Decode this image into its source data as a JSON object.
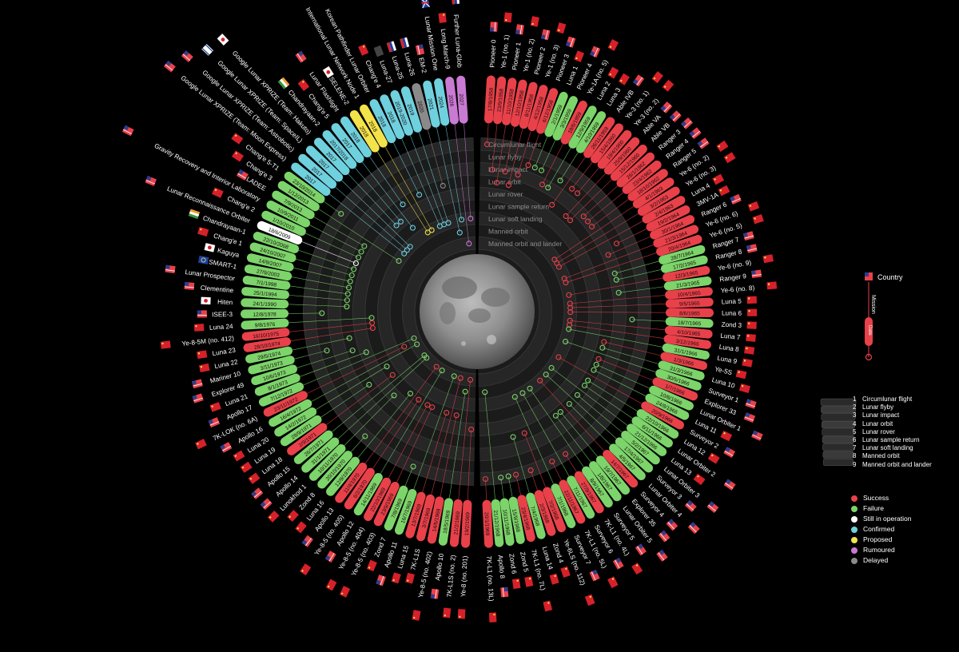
{
  "colors": {
    "success": "#e8414a",
    "failure": "#7cd46a",
    "still_in_operation": "#ffffff",
    "confirmed": "#6fd0de",
    "proposed": "#f3e34a",
    "rumoured": "#c97ad3",
    "delayed": "#8a8a8a"
  },
  "mission_types": [
    "Circumlunar flight",
    "Lunar flyby",
    "Lunar impact",
    "Lunar orbit",
    "Lunar rover",
    "Lunar sample return",
    "Lunar soft landing",
    "Manned orbit",
    "Manned orbit and lander"
  ],
  "legend": {
    "country": "Country",
    "mission": "Mission",
    "date": "Date",
    "status": [
      {
        "key": "success",
        "label": "Success"
      },
      {
        "key": "failure",
        "label": "Failure"
      },
      {
        "key": "still_in_operation",
        "label": "Still in operation"
      },
      {
        "key": "confirmed",
        "label": "Confirmed"
      },
      {
        "key": "proposed",
        "label": "Proposed"
      },
      {
        "key": "rumoured",
        "label": "Rumoured"
      },
      {
        "key": "delayed",
        "label": "Delayed"
      }
    ]
  },
  "missions_right": [
    {
      "name": "Pioneer 0",
      "date": "17/8/1958",
      "status": "success",
      "type": 1,
      "flag": "us"
    },
    {
      "name": "Ye-1 (no. 1)",
      "date": "23/9/1958",
      "status": "success",
      "type": 3,
      "flag": "ussr"
    },
    {
      "name": "Pioneer 1",
      "date": "11/10/1958",
      "status": "success",
      "type": 4,
      "flag": "us"
    },
    {
      "name": "Ye-1 (no. 2)",
      "date": "12/10/1958",
      "status": "success",
      "type": 3,
      "flag": "ussr"
    },
    {
      "name": "Pioneer 2",
      "date": "8/11/1958",
      "status": "success",
      "type": 4,
      "flag": "us"
    },
    {
      "name": "Ye-1 (no. 3)",
      "date": "4/12/1958",
      "status": "success",
      "type": 3,
      "flag": "ussr"
    },
    {
      "name": "Pioneer 3",
      "date": "6/12/1958",
      "status": "success",
      "type": 2,
      "flag": "us"
    },
    {
      "name": "Luna 1",
      "date": "2/1/1959",
      "status": "failure",
      "type": 2,
      "flag": "ussr"
    },
    {
      "name": "Pioneer 4",
      "date": "3/3/1959",
      "status": "failure",
      "type": 2,
      "flag": "us"
    },
    {
      "name": "Ye-1A (no. 5)",
      "date": "18/6/1959",
      "status": "success",
      "type": 3,
      "flag": "ussr"
    },
    {
      "name": "Luna 2",
      "date": "12/9/1959",
      "status": "failure",
      "type": 3,
      "flag": "ussr"
    },
    {
      "name": "Luna 3",
      "date": "4/10/1959",
      "status": "failure",
      "type": 2,
      "flag": "ussr"
    },
    {
      "name": "Able IVB",
      "date": "26/11/1959",
      "status": "success",
      "type": 4,
      "flag": "us"
    },
    {
      "name": "Ye-3 (no. 1)",
      "date": "15/4/1960",
      "status": "success",
      "type": 2,
      "flag": "ussr"
    },
    {
      "name": "Ye-3 (no. 2)",
      "date": "19/4/1960",
      "status": "success",
      "type": 2,
      "flag": "ussr"
    },
    {
      "name": "Able VA",
      "date": "25/9/1960",
      "status": "success",
      "type": 4,
      "flag": "us"
    },
    {
      "name": "Able VB",
      "date": "15/12/1960",
      "status": "success",
      "type": 4,
      "flag": "us"
    },
    {
      "name": "Ranger 3",
      "date": "26/1/1962",
      "status": "success",
      "type": 3,
      "flag": "us"
    },
    {
      "name": "Ranger 4",
      "date": "23/4/1962",
      "status": "success",
      "type": 3,
      "flag": "us"
    },
    {
      "name": "Ranger 5",
      "date": "18/10/1962",
      "status": "success",
      "type": 3,
      "flag": "us"
    },
    {
      "name": "Ye-6 (no. 2)",
      "date": "4/1/1963",
      "status": "success",
      "type": 7,
      "flag": "ussr"
    },
    {
      "name": "Ye-6 (no. 3)",
      "date": "3/2/1963",
      "status": "success",
      "type": 7,
      "flag": "ussr"
    },
    {
      "name": "Luna 4",
      "date": "2/4/1963",
      "status": "success",
      "type": 7,
      "flag": "ussr"
    },
    {
      "name": "3MV-1A",
      "date": "19/2/1964",
      "status": "success",
      "type": 2,
      "flag": "ussr"
    },
    {
      "name": "Ranger 6",
      "date": "30/1/1964",
      "status": "success",
      "type": 3,
      "flag": "us"
    },
    {
      "name": "Ye-6 (no. 6)",
      "date": "21/3/1964",
      "status": "success",
      "type": 7,
      "flag": "ussr"
    },
    {
      "name": "Ye-6 (no. 5)",
      "date": "20/4/1964",
      "status": "success",
      "type": 7,
      "flag": "ussr"
    },
    {
      "name": "Ranger 7",
      "date": "28/7/1964",
      "status": "failure",
      "type": 3,
      "flag": "us"
    },
    {
      "name": "Ranger 8",
      "date": "17/2/1965",
      "status": "failure",
      "type": 3,
      "flag": "us"
    },
    {
      "name": "Ye-6 (no. 9)",
      "date": "12/3/1965",
      "status": "success",
      "type": 7,
      "flag": "ussr"
    },
    {
      "name": "Ranger 9",
      "date": "21/3/1965",
      "status": "failure",
      "type": 3,
      "flag": "us"
    },
    {
      "name": "Ye-6 (no. 8)",
      "date": "10/4/1965",
      "status": "success",
      "type": 7,
      "flag": "ussr"
    },
    {
      "name": "Luna 5",
      "date": "9/5/1965",
      "status": "success",
      "type": 7,
      "flag": "ussr"
    },
    {
      "name": "Luna 6",
      "date": "8/6/1965",
      "status": "success",
      "type": 7,
      "flag": "ussr"
    },
    {
      "name": "Zond 3",
      "date": "18/7/1965",
      "status": "failure",
      "type": 2,
      "flag": "ussr"
    },
    {
      "name": "Luna 7",
      "date": "4/10/1965",
      "status": "success",
      "type": 7,
      "flag": "ussr"
    },
    {
      "name": "Luna 8",
      "date": "3/12/1965",
      "status": "success",
      "type": 7,
      "flag": "ussr"
    },
    {
      "name": "Luna 9",
      "date": "31/1/1966",
      "status": "failure",
      "type": 7,
      "flag": "ussr"
    },
    {
      "name": "Ye-5S",
      "date": "1/3/1966",
      "status": "success",
      "type": 4,
      "flag": "ussr"
    },
    {
      "name": "Luna 10",
      "date": "31/3/1966",
      "status": "failure",
      "type": 4,
      "flag": "ussr"
    },
    {
      "name": "Surveyor 1",
      "date": "30/5/1966",
      "status": "failure",
      "type": 7,
      "flag": "us"
    },
    {
      "name": "Explorer 33",
      "date": "1/7/1966",
      "status": "success",
      "type": 4,
      "flag": "us"
    },
    {
      "name": "Lunar Orbiter 1",
      "date": "10/8/1966",
      "status": "failure",
      "type": 4,
      "flag": "us"
    },
    {
      "name": "Luna 11",
      "date": "24/8/1966",
      "status": "failure",
      "type": 4,
      "flag": "ussr"
    },
    {
      "name": "Surveyor 2",
      "date": "20/9/1966",
      "status": "success",
      "type": 7,
      "flag": "us"
    },
    {
      "name": "Luna 12",
      "date": "22/10/1966",
      "status": "failure",
      "type": 4,
      "flag": "ussr"
    },
    {
      "name": "Lunar Orbiter 2",
      "date": "6/11/1966",
      "status": "failure",
      "type": 4,
      "flag": "us"
    },
    {
      "name": "Luna 13",
      "date": "21/12/1966",
      "status": "failure",
      "type": 7,
      "flag": "ussr"
    },
    {
      "name": "Lunar Orbiter 3",
      "date": "5/2/1967",
      "status": "failure",
      "type": 4,
      "flag": "us"
    },
    {
      "name": "Surveyor 3",
      "date": "17/4/1967",
      "status": "failure",
      "type": 7,
      "flag": "us"
    },
    {
      "name": "Lunar Orbiter 4",
      "date": "4/5/1967",
      "status": "failure",
      "type": 4,
      "flag": "us"
    },
    {
      "name": "Surveyor 4",
      "date": "14/7/1967",
      "status": "success",
      "type": 7,
      "flag": "us"
    },
    {
      "name": "Explorer 35",
      "date": "19/7/1967",
      "status": "failure",
      "type": 4,
      "flag": "us"
    },
    {
      "name": "Lunar Orbiter 5",
      "date": "1/8/1967",
      "status": "failure",
      "type": 4,
      "flag": "us"
    },
    {
      "name": "Surveyor 5",
      "date": "8/9/1967",
      "status": "failure",
      "type": 7,
      "flag": "us"
    },
    {
      "name": "7K-L1 (no. 4L)",
      "date": "27/9/1967",
      "status": "success",
      "type": 1,
      "flag": "ussr"
    },
    {
      "name": "Surveyor 6",
      "date": "7/11/1967",
      "status": "failure",
      "type": 7,
      "flag": "us"
    },
    {
      "name": "7K-L1 (no. 5L)",
      "date": "22/11/1967",
      "status": "success",
      "type": 1,
      "flag": "ussr"
    },
    {
      "name": "Surveyor 7",
      "date": "7/1/1968",
      "status": "failure",
      "type": 7,
      "flag": "us"
    },
    {
      "name": "Ye-6LS (no. 112)",
      "date": "7/2/1968",
      "status": "success",
      "type": 4,
      "flag": "ussr"
    },
    {
      "name": "Zond 4",
      "date": "2/3/1968",
      "status": "success",
      "type": 1,
      "flag": "ussr"
    },
    {
      "name": "Luna 14",
      "date": "7/4/1968",
      "status": "failure",
      "type": 4,
      "flag": "ussr"
    },
    {
      "name": "7K-L1 (no. 7L)",
      "date": "23/4/1968",
      "status": "success",
      "type": 1,
      "flag": "ussr"
    },
    {
      "name": "Zond 5",
      "date": "15/9/1968",
      "status": "failure",
      "type": 1,
      "flag": "ussr"
    },
    {
      "name": "Zond 6",
      "date": "10/11/1968",
      "status": "failure",
      "type": 1,
      "flag": "ussr"
    },
    {
      "name": "Apollo 8",
      "date": "21/12/1968",
      "status": "failure",
      "type": 8,
      "flag": "us"
    },
    {
      "name": "7K-L1 (no. 13L)",
      "date": "20/1/1969",
      "status": "success",
      "type": 1,
      "flag": "ussr"
    }
  ],
  "missions_left": [
    {
      "name": "Ye-8 (no. 201)",
      "date": "19/2/1969",
      "status": "success",
      "type": 5,
      "flag": "ussr"
    },
    {
      "name": "7K-L1S (no. 2)",
      "date": "21/2/1969",
      "status": "success",
      "type": 9,
      "flag": "ussr"
    },
    {
      "name": "Apollo 10",
      "date": "18/5/1969",
      "status": "failure",
      "type": 8,
      "flag": "us"
    },
    {
      "name": "Ye-8-5 (no. 402)",
      "date": "14/6/1969",
      "status": "success",
      "type": 6,
      "flag": "ussr"
    },
    {
      "name": "7K-L1S",
      "date": "3/7/1969",
      "status": "success",
      "type": 9,
      "flag": "ussr"
    },
    {
      "name": "Luna 15",
      "date": "13/7/1969",
      "status": "success",
      "type": 6,
      "flag": "ussr"
    },
    {
      "name": "Apollo 11",
      "date": "16/7/1969",
      "status": "failure",
      "type": 9,
      "flag": "us"
    },
    {
      "name": "Zond 7",
      "date": "7/8/1969",
      "status": "failure",
      "type": 1,
      "flag": "ussr"
    },
    {
      "name": "Ye-8-5 (no. 403)",
      "date": "23/9/1969",
      "status": "success",
      "type": 6,
      "flag": "ussr"
    },
    {
      "name": "Ye-8-5 (no. 404)",
      "date": "22/10/1969",
      "status": "success",
      "type": 6,
      "flag": "ussr"
    },
    {
      "name": "Apollo 12",
      "date": "14/11/1969",
      "status": "failure",
      "type": 9,
      "flag": "us"
    },
    {
      "name": "Ye-8-5 (no. 405)",
      "date": "6/2/1970",
      "status": "success",
      "type": 6,
      "flag": "ussr"
    },
    {
      "name": "Apollo 13",
      "date": "11/4/1970",
      "status": "success",
      "type": 9,
      "flag": "us"
    },
    {
      "name": "Luna 16",
      "date": "12/9/1970",
      "status": "failure",
      "type": 6,
      "flag": "ussr"
    },
    {
      "name": "Zond 8",
      "date": "20/10/1970",
      "status": "failure",
      "type": 1,
      "flag": "ussr"
    },
    {
      "name": "Lunokhod 1",
      "date": "10/11/1970",
      "status": "failure",
      "type": 5,
      "flag": "ussr"
    },
    {
      "name": "Apollo 14",
      "date": "31/1/1971",
      "status": "failure",
      "type": 9,
      "flag": "us"
    },
    {
      "name": "Apollo 15",
      "date": "26/7/1971",
      "status": "failure",
      "type": 9,
      "flag": "us"
    },
    {
      "name": "Luna 18",
      "date": "2/9/1971",
      "status": "success",
      "type": 6,
      "flag": "ussr"
    },
    {
      "name": "Luna 19",
      "date": "28/9/1971",
      "status": "failure",
      "type": 4,
      "flag": "ussr"
    },
    {
      "name": "Luna 20",
      "date": "14/2/1972",
      "status": "failure",
      "type": 6,
      "flag": "ussr"
    },
    {
      "name": "Apollo 16",
      "date": "16/4/1972",
      "status": "failure",
      "type": 9,
      "flag": "us"
    },
    {
      "name": "7K-LOK (no. 6A)",
      "date": "23/11/1972",
      "status": "success",
      "type": 8,
      "flag": "ussr"
    },
    {
      "name": "Apollo 17",
      "date": "7/12/1972",
      "status": "failure",
      "type": 9,
      "flag": "us"
    },
    {
      "name": "Luna 21",
      "date": "8/1/1973",
      "status": "failure",
      "type": 5,
      "flag": "ussr"
    },
    {
      "name": "Explorer 49",
      "date": "10/6/1973",
      "status": "failure",
      "type": 4,
      "flag": "us"
    },
    {
      "name": "Mariner 10",
      "date": "3/11/1973",
      "status": "failure",
      "type": 2,
      "flag": "us"
    },
    {
      "name": "Luna 22",
      "date": "29/5/1974",
      "status": "failure",
      "type": 4,
      "flag": "ussr"
    },
    {
      "name": "Luna 23",
      "date": "28/10/1974",
      "status": "success",
      "type": 6,
      "flag": "ussr"
    },
    {
      "name": "Ye-8-5M (no. 412)",
      "date": "16/10/1975",
      "status": "success",
      "type": 6,
      "flag": "ussr"
    },
    {
      "name": "Luna 24",
      "date": "9/8/1976",
      "status": "failure",
      "type": 6,
      "flag": "ussr"
    },
    {
      "name": "ISEE-3",
      "date": "12/8/1978",
      "status": "failure",
      "type": 2,
      "flag": "us"
    },
    {
      "name": "Hiten",
      "date": "24/1/1990",
      "status": "failure",
      "type": 4,
      "flag": "jp"
    },
    {
      "name": "Clementine",
      "date": "25/1/1994",
      "status": "failure",
      "type": 4,
      "flag": "us"
    },
    {
      "name": "Lunar Prospector",
      "date": "7/1/1998",
      "status": "failure",
      "type": 4,
      "flag": "us"
    },
    {
      "name": "SMART-1",
      "date": "27/9/2003",
      "status": "failure",
      "type": 4,
      "flag": "eu"
    },
    {
      "name": "Kaguya",
      "date": "14/9/2007",
      "status": "failure",
      "type": 4,
      "flag": "jp"
    },
    {
      "name": "Chang'e 1",
      "date": "24/10/2007",
      "status": "failure",
      "type": 4,
      "flag": "cn"
    },
    {
      "name": "Chandrayaan-1",
      "date": "22/10/2008",
      "status": "failure",
      "type": 4,
      "flag": "in"
    },
    {
      "name": "Lunar Reconnaissance Orbiter",
      "date": "18/6/2009",
      "status": "still_in_operation",
      "type": 4,
      "flag": "us"
    },
    {
      "name": "Chang'e 2",
      "date": "1/10/2010",
      "status": "failure",
      "type": 4,
      "flag": "cn"
    },
    {
      "name": "Gravity Recovery and Interior Laboratory",
      "date": "10/9/2011",
      "status": "failure",
      "type": 4,
      "flag": "us"
    },
    {
      "name": "LADEE",
      "date": "7/9/2013",
      "status": "failure",
      "type": 4,
      "flag": "us"
    },
    {
      "name": "Chang'e 3",
      "date": "1/12/2013",
      "status": "failure",
      "type": 7,
      "flag": "cn"
    },
    {
      "name": "Chang'e 5-T1",
      "date": "23/10/2014",
      "status": "failure",
      "type": 1,
      "flag": "cn"
    },
    {
      "name": "Google Lunar XPRIZE (Team: Moon Express)",
      "date": "2017",
      "status": "confirmed",
      "type": 7,
      "flag": "us"
    },
    {
      "name": "Google Lunar XPRIZE (Team: Astrobotic)",
      "date": "2017",
      "status": "confirmed",
      "type": 7,
      "flag": "us"
    },
    {
      "name": "Google Lunar XPRIZE (Team: SpaceIL)",
      "date": "2017",
      "status": "confirmed",
      "type": 7,
      "flag": "il"
    },
    {
      "name": "Google Lunar XPRIZE (Team: Hakuto)",
      "date": "2017",
      "status": "confirmed",
      "type": 5,
      "flag": "jp"
    },
    {
      "name": "Chandrayaan-2",
      "date": "2017/2018",
      "status": "confirmed",
      "type": 5,
      "flag": "in"
    },
    {
      "name": "Chang'e 5",
      "date": "2017",
      "status": "confirmed",
      "type": 6,
      "flag": "cn"
    },
    {
      "name": "Lunar Flashlight",
      "date": "2018",
      "status": "confirmed",
      "type": 4,
      "flag": "us"
    },
    {
      "name": "SELENE-2",
      "date": "2018",
      "status": "proposed",
      "type": 7,
      "flag": "jp"
    },
    {
      "name": "International Lunar Network Node 1",
      "date": "2018",
      "status": "proposed",
      "type": 7,
      "flag": "us"
    },
    {
      "name": "Korean Pathfinder Lunar Orbiter",
      "date": "2018",
      "status": "confirmed",
      "type": 4,
      "flag": "kr"
    },
    {
      "name": "Chang'e 4",
      "date": "2018",
      "status": "confirmed",
      "type": 7,
      "flag": "cn"
    },
    {
      "name": "Luna-27",
      "date": "2019-2020",
      "status": "confirmed",
      "type": 7,
      "flag": "esa"
    },
    {
      "name": "Luna-25",
      "date": "2019",
      "status": "confirmed",
      "type": 7,
      "flag": "ru"
    },
    {
      "name": "Luna-26",
      "date": "2020",
      "status": "delayed",
      "type": 4,
      "flag": "ru"
    },
    {
      "name": "EM-2",
      "date": "2021",
      "status": "confirmed",
      "type": 8,
      "flag": "us"
    },
    {
      "name": "Lunar Mission One",
      "date": "2024",
      "status": "confirmed",
      "type": 7,
      "flag": "uk"
    },
    {
      "name": "Long March-9",
      "date": "2026",
      "status": "rumoured",
      "type": 9,
      "flag": "cn"
    },
    {
      "name": "Further Luna-Glob",
      "date": "2027",
      "status": "rumoured",
      "type": 7,
      "flag": "ru"
    }
  ]
}
